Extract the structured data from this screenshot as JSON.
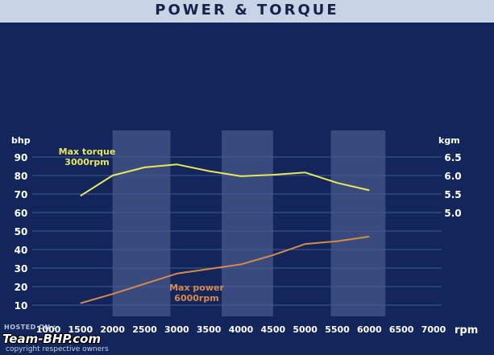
{
  "title": "POWER & TORQUE",
  "watermark": {
    "hosted": "HOSTED ON :",
    "logo": "Team-BHP.com",
    "copyright": "copyright respective owners"
  },
  "chart_data": {
    "type": "line",
    "x_label": "rpm",
    "x_ticks": [
      1000,
      1500,
      2000,
      2500,
      3000,
      3500,
      4000,
      4500,
      5000,
      5500,
      6000,
      6500,
      7000
    ],
    "y_left_label": "bhp",
    "y_left_ticks": [
      10,
      20,
      30,
      40,
      50,
      60,
      70,
      80,
      90
    ],
    "y_right_label": "kgm",
    "y_right_ticks": [
      5.0,
      5.5,
      6.0,
      6.5
    ],
    "highlight_bands": [
      [
        2000,
        2900
      ],
      [
        3700,
        4500
      ],
      [
        5400,
        6250
      ]
    ],
    "series": [
      {
        "axis": "right",
        "color": "#e8e85a",
        "x": [
          1500,
          2000,
          2500,
          3000,
          3500,
          4000,
          4500,
          5000,
          5500,
          6000
        ],
        "y": [
          5.45,
          6.0,
          6.22,
          6.3,
          6.12,
          5.98,
          6.02,
          6.08,
          5.8,
          5.6
        ]
      },
      {
        "axis": "left",
        "color": "#d9894a",
        "x": [
          1500,
          2000,
          2500,
          3000,
          3500,
          4000,
          4500,
          5000,
          5500,
          6000
        ],
        "y": [
          11,
          16,
          21.5,
          27,
          29.5,
          32,
          37,
          43,
          44.5,
          47
        ]
      }
    ],
    "annotations": [
      {
        "id": "torque",
        "lines": [
          "Max torque",
          "3000rpm"
        ],
        "color": "#e8e85a"
      },
      {
        "id": "power",
        "lines": [
          "Max power",
          "6000rpm"
        ],
        "color": "#d9894a"
      }
    ]
  }
}
